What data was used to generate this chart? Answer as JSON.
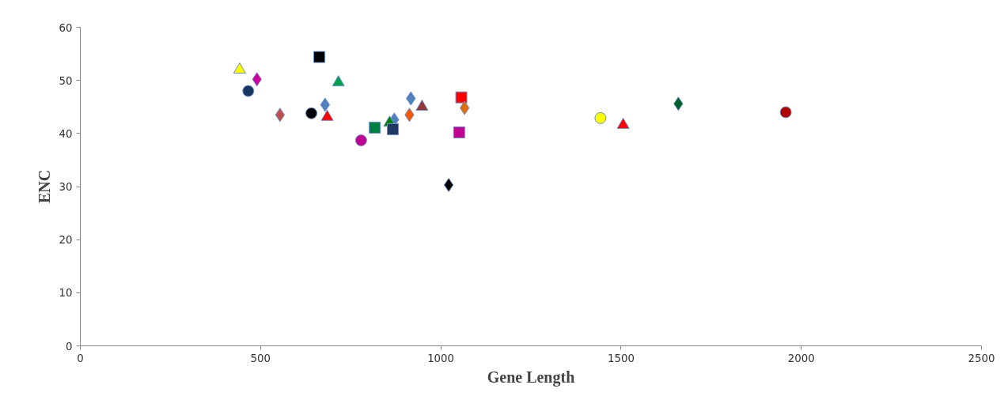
{
  "chart_data": {
    "type": "scatter",
    "xlabel": "Gene Length",
    "ylabel": "ENC",
    "xlim": [
      0,
      2500
    ],
    "ylim": [
      0,
      60
    ],
    "xticks": [
      0,
      500,
      1000,
      1500,
      2000,
      2500
    ],
    "yticks": [
      0,
      10,
      20,
      30,
      40,
      50,
      60
    ],
    "grid": false,
    "series": [
      {
        "color": "#ffff00",
        "marker": "triangle",
        "x": [
          442
        ],
        "values": [
          52.0
        ]
      },
      {
        "color": "#cc0099",
        "marker": "diamond",
        "x": [
          490
        ],
        "values": [
          50.2
        ]
      },
      {
        "color": "#17375e",
        "marker": "circle",
        "x": [
          466
        ],
        "values": [
          48.0
        ]
      },
      {
        "color": "#c0504d",
        "marker": "diamond",
        "x": [
          554
        ],
        "values": [
          43.5
        ]
      },
      {
        "color": "#000000",
        "marker": "square",
        "x": [
          663
        ],
        "values": [
          54.4
        ]
      },
      {
        "color": "#00a050",
        "marker": "triangle",
        "x": [
          716
        ],
        "values": [
          49.6
        ]
      },
      {
        "color": "#4f81bd",
        "marker": "diamond",
        "x": [
          679
        ],
        "values": [
          45.4
        ]
      },
      {
        "color": "#000000",
        "marker": "circle",
        "x": [
          641
        ],
        "values": [
          43.8
        ]
      },
      {
        "color": "#ff0000",
        "marker": "triangle",
        "x": [
          685
        ],
        "values": [
          43.1
        ]
      },
      {
        "color": "#c00090",
        "marker": "circle",
        "x": [
          779
        ],
        "values": [
          38.7
        ]
      },
      {
        "color": "#008040",
        "marker": "square",
        "x": [
          817
        ],
        "values": [
          41.1
        ]
      },
      {
        "color": "#4f81bd",
        "marker": "diamond",
        "x": [
          871
        ],
        "values": [
          42.6
        ]
      },
      {
        "color": "#008000",
        "marker": "triangle",
        "x": [
          858
        ],
        "values": [
          42.0
        ]
      },
      {
        "color": "#1f3864",
        "marker": "square",
        "x": [
          867
        ],
        "values": [
          40.8
        ]
      },
      {
        "color": "#ff5500",
        "marker": "diamond",
        "x": [
          913
        ],
        "values": [
          43.5
        ]
      },
      {
        "color": "#4f81bd",
        "marker": "diamond",
        "x": [
          917
        ],
        "values": [
          46.6
        ]
      },
      {
        "color": "#943634",
        "marker": "triangle",
        "x": [
          948
        ],
        "values": [
          45.0
        ]
      },
      {
        "color": "#ff0000",
        "marker": "square",
        "x": [
          1057
        ],
        "values": [
          46.8
        ]
      },
      {
        "color": "#e36c09",
        "marker": "diamond",
        "x": [
          1066
        ],
        "values": [
          44.8
        ]
      },
      {
        "color": "#c00090",
        "marker": "square",
        "x": [
          1051
        ],
        "values": [
          40.2
        ]
      },
      {
        "color": "#000000",
        "marker": "diamond",
        "x": [
          1022
        ],
        "values": [
          30.3
        ]
      },
      {
        "color": "#ffff00",
        "marker": "circle",
        "x": [
          1443
        ],
        "values": [
          42.9
        ]
      },
      {
        "color": "#ff0000",
        "marker": "triangle",
        "x": [
          1506
        ],
        "values": [
          41.6
        ]
      },
      {
        "color": "#00602a",
        "marker": "diamond",
        "x": [
          1659
        ],
        "values": [
          45.6
        ]
      },
      {
        "color": "#b00000",
        "marker": "circle",
        "x": [
          1957
        ],
        "values": [
          44.0
        ]
      }
    ]
  }
}
